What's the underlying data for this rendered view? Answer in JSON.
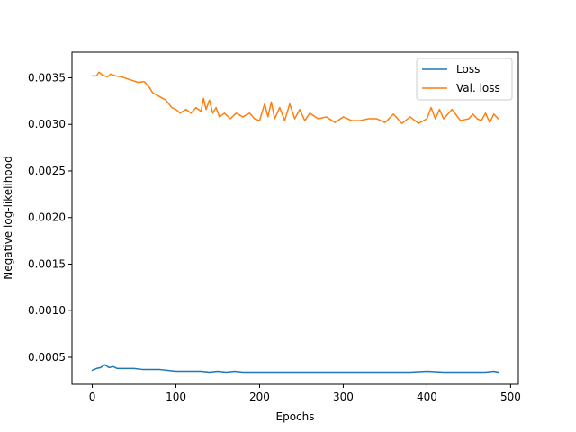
{
  "chart_data": {
    "type": "line",
    "title": "",
    "xlabel": "Epochs",
    "ylabel": "Negative log-likelihood",
    "xlim": [
      -24.25,
      509.25
    ],
    "ylim": [
      0.00021,
      0.003775
    ],
    "xticks": [
      0,
      100,
      200,
      300,
      400,
      500
    ],
    "yticks": [
      0.0005,
      0.001,
      0.0015,
      0.002,
      0.0025,
      0.003,
      0.0035
    ],
    "ytick_labels": [
      "0.0005",
      "0.0010",
      "0.0015",
      "0.0020",
      "0.0025",
      "0.0030",
      "0.0035"
    ],
    "grid": false,
    "legend": "top-right",
    "series": [
      {
        "name": "Loss",
        "color": "#1f77b4",
        "x": [
          0,
          5,
          10,
          15,
          20,
          25,
          30,
          40,
          50,
          60,
          70,
          80,
          90,
          100,
          110,
          120,
          130,
          140,
          150,
          160,
          170,
          180,
          190,
          200,
          220,
          240,
          260,
          280,
          300,
          320,
          340,
          360,
          380,
          400,
          420,
          440,
          460,
          470,
          480,
          485
        ],
        "y": [
          0.00036,
          0.00038,
          0.00039,
          0.00042,
          0.00039,
          0.0004,
          0.00038,
          0.00038,
          0.00038,
          0.00037,
          0.00037,
          0.00037,
          0.00036,
          0.00035,
          0.00035,
          0.00035,
          0.00035,
          0.00034,
          0.00035,
          0.00034,
          0.00035,
          0.00034,
          0.00034,
          0.00034,
          0.00034,
          0.00034,
          0.00034,
          0.00034,
          0.00034,
          0.00034,
          0.00034,
          0.00034,
          0.00034,
          0.00035,
          0.00034,
          0.00034,
          0.00034,
          0.00034,
          0.00035,
          0.00034
        ]
      },
      {
        "name": "Val. loss",
        "color": "#ff7f0e",
        "x": [
          0,
          5,
          8,
          12,
          18,
          22,
          28,
          35,
          45,
          55,
          62,
          68,
          72,
          80,
          88,
          95,
          100,
          105,
          112,
          118,
          124,
          130,
          133,
          136,
          140,
          144,
          148,
          152,
          158,
          165,
          172,
          180,
          188,
          194,
          200,
          206,
          210,
          214,
          218,
          224,
          230,
          236,
          242,
          248,
          254,
          260,
          270,
          280,
          290,
          300,
          310,
          320,
          330,
          340,
          350,
          360,
          370,
          380,
          390,
          400,
          405,
          410,
          415,
          420,
          430,
          440,
          450,
          455,
          460,
          465,
          470,
          475,
          480,
          485
        ],
        "y": [
          0.00352,
          0.00352,
          0.00356,
          0.00353,
          0.00351,
          0.00354,
          0.00352,
          0.00351,
          0.00348,
          0.00345,
          0.00346,
          0.0034,
          0.00334,
          0.0033,
          0.00326,
          0.00318,
          0.00316,
          0.00312,
          0.00316,
          0.00312,
          0.00318,
          0.00314,
          0.00328,
          0.00316,
          0.00326,
          0.00312,
          0.00318,
          0.00308,
          0.00312,
          0.00306,
          0.00312,
          0.00308,
          0.00312,
          0.00306,
          0.00304,
          0.00322,
          0.00308,
          0.00324,
          0.00306,
          0.00318,
          0.00304,
          0.00322,
          0.00306,
          0.00316,
          0.00304,
          0.00312,
          0.00306,
          0.00308,
          0.00302,
          0.00308,
          0.00304,
          0.00304,
          0.00306,
          0.00306,
          0.00302,
          0.00311,
          0.00301,
          0.00308,
          0.00301,
          0.00306,
          0.00318,
          0.00306,
          0.00316,
          0.00306,
          0.00316,
          0.00304,
          0.00306,
          0.00311,
          0.00306,
          0.00304,
          0.00312,
          0.00302,
          0.00311,
          0.00306
        ]
      }
    ]
  }
}
